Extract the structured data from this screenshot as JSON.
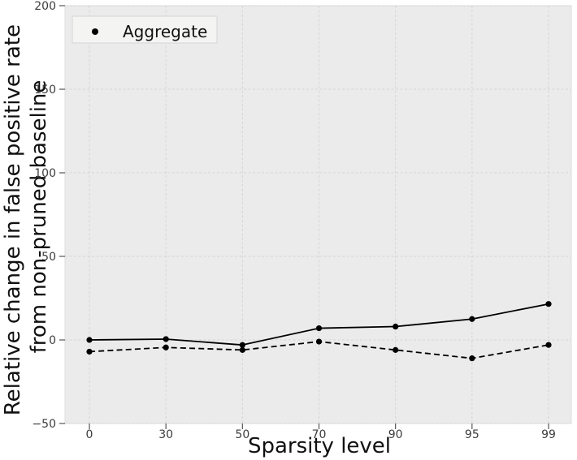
{
  "figure": {
    "background": "#ffffff",
    "panel_background": "#ebebeb",
    "panel_border": "#dcdcdc",
    "grid_color": "#d5d5d5",
    "tick_color": "#555555",
    "tick_label_color": "#3d3d3d",
    "axis_label_color": "#111111",
    "line_color": "#000000",
    "legend_background": "#f4f4f3",
    "legend_border": "#d5d5d5"
  },
  "chart_data": {
    "type": "line",
    "title": "",
    "xlabel": "Sparsity level",
    "ylabel_lines": [
      "Relative change in false positive rate",
      "from non-pruned baseline"
    ],
    "x_values": [
      0,
      30,
      50,
      70,
      90,
      95,
      99
    ],
    "x_tick_labels": [
      "0",
      "30",
      "50",
      "70",
      "90",
      "95",
      "99"
    ],
    "x_axis_type": "categorical-equal-spacing",
    "ylim": [
      -50,
      200
    ],
    "y_ticks": [
      200,
      150,
      100,
      50,
      0,
      -50
    ],
    "y_tick_labels": [
      "200",
      "150",
      "100",
      "50",
      "0",
      "−50"
    ],
    "grid": true,
    "grid_style": "dashed",
    "legend": {
      "label": "Aggregate",
      "position": "upper-left",
      "marker": "dot"
    },
    "series": [
      {
        "name": "aggregate-solid",
        "line_style": "solid",
        "marker": "circle",
        "color": "#000000",
        "values": [
          0,
          0.5,
          -3,
          7,
          8,
          12.5,
          21.5
        ]
      },
      {
        "name": "aggregate-dashed",
        "line_style": "dashed",
        "marker": "circle",
        "color": "#000000",
        "values": [
          -7,
          -4.5,
          -6,
          -1,
          -6,
          -11,
          -3
        ]
      }
    ]
  }
}
